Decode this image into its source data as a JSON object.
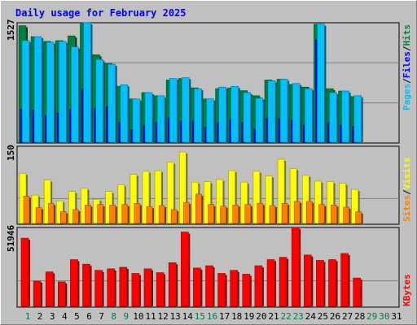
{
  "title": "Daily usage for February 2025",
  "colors": {
    "title": "#0000ff",
    "panel_bg": "#c0c0c0",
    "outer_bg": "#c0c0c0",
    "hits": "#008040",
    "files": "#0000ff",
    "pages": "#00c0ff",
    "visits": "#ffff00",
    "sites": "#ff8000",
    "kbytes": "#ff0000",
    "weekday_label": "#008040",
    "weekend_label": "#000000"
  },
  "legend": {
    "top": [
      {
        "text": "Pages",
        "color": "#00c0ff"
      },
      {
        "text": "/",
        "color": "#000000"
      },
      {
        "text": "Files",
        "color": "#0000ff"
      },
      {
        "text": "/",
        "color": "#000000"
      },
      {
        "text": "Hits",
        "color": "#008040"
      }
    ],
    "mid": [
      {
        "text": "Sites",
        "color": "#ff8000"
      },
      {
        "text": "/",
        "color": "#000000"
      },
      {
        "text": "Visits",
        "color": "#ffff00"
      }
    ],
    "bottom": [
      {
        "text": "KBytes",
        "color": "#ff0000"
      }
    ]
  },
  "chart_data": [
    {
      "type": "bar",
      "panel": "top",
      "ymax_label": "1527",
      "ylim": [
        0,
        1527
      ],
      "x": [
        1,
        2,
        3,
        4,
        5,
        6,
        7,
        8,
        9,
        10,
        11,
        12,
        13,
        14,
        15,
        16,
        17,
        18,
        19,
        20,
        21,
        22,
        23,
        24,
        25,
        26,
        27,
        28
      ],
      "series": [
        {
          "name": "Hits",
          "values": [
            1490,
            1350,
            1290,
            1300,
            1360,
            1527,
            1120,
            1010,
            720,
            560,
            640,
            600,
            800,
            820,
            700,
            560,
            690,
            700,
            665,
            600,
            800,
            810,
            745,
            710,
            1510,
            690,
            660,
            590
          ]
        },
        {
          "name": "Files",
          "values": [
            430,
            420,
            350,
            380,
            430,
            690,
            440,
            460,
            260,
            170,
            220,
            260,
            320,
            280,
            280,
            200,
            250,
            290,
            260,
            180,
            310,
            310,
            290,
            230,
            1310,
            250,
            230,
            210
          ]
        },
        {
          "name": "Pages",
          "values": [
            1300,
            1350,
            1280,
            1290,
            1220,
            1527,
            1060,
            1000,
            740,
            560,
            640,
            600,
            820,
            830,
            690,
            560,
            710,
            720,
            640,
            570,
            790,
            810,
            755,
            690,
            1510,
            640,
            660,
            600
          ]
        }
      ]
    },
    {
      "type": "bar",
      "panel": "middle",
      "ymax_label": "150",
      "ylim": [
        0,
        150
      ],
      "x": [
        1,
        2,
        3,
        4,
        5,
        6,
        7,
        8,
        9,
        10,
        11,
        12,
        13,
        14,
        15,
        16,
        17,
        18,
        19,
        20,
        21,
        22,
        23,
        24,
        25,
        26,
        27,
        28
      ],
      "series": [
        {
          "name": "Visits",
          "values": [
            98,
            56,
            85,
            45,
            63,
            69,
            48,
            63,
            76,
            96,
            102,
            103,
            119,
            139,
            81,
            82,
            86,
            103,
            81,
            102,
            93,
            125,
            107,
            94,
            83,
            82,
            79,
            67
          ]
        },
        {
          "name": "Sites",
          "values": [
            54,
            32,
            40,
            24,
            28,
            37,
            38,
            37,
            38,
            40,
            34,
            36,
            28,
            42,
            58,
            38,
            35,
            37,
            38,
            40,
            36,
            40,
            44,
            44,
            38,
            37,
            33,
            24
          ]
        }
      ]
    },
    {
      "type": "bar",
      "panel": "bottom",
      "ymax_label": "51946",
      "ylim": [
        0,
        51946
      ],
      "x": [
        1,
        2,
        3,
        4,
        5,
        6,
        7,
        8,
        9,
        10,
        11,
        12,
        13,
        14,
        15,
        16,
        17,
        18,
        19,
        20,
        21,
        22,
        23,
        24,
        25,
        26,
        27,
        28
      ],
      "series": [
        {
          "name": "KBytes",
          "values": [
            45000,
            17000,
            23000,
            16500,
            31000,
            28000,
            24000,
            25000,
            26000,
            22000,
            25000,
            22500,
            29000,
            49000,
            25500,
            27000,
            22000,
            24000,
            21500,
            27000,
            31000,
            32500,
            51946,
            34000,
            30500,
            31000,
            35000,
            19000
          ]
        }
      ]
    }
  ],
  "days": [
    {
      "label": "1",
      "weekend": false
    },
    {
      "label": "2",
      "weekend": true
    },
    {
      "label": "3",
      "weekend": true
    },
    {
      "label": "4",
      "weekend": true
    },
    {
      "label": "5",
      "weekend": true
    },
    {
      "label": "6",
      "weekend": true
    },
    {
      "label": "7",
      "weekend": true
    },
    {
      "label": "8",
      "weekend": false
    },
    {
      "label": "9",
      "weekend": false
    },
    {
      "label": "10",
      "weekend": true
    },
    {
      "label": "11",
      "weekend": true
    },
    {
      "label": "12",
      "weekend": true
    },
    {
      "label": "13",
      "weekend": true
    },
    {
      "label": "14",
      "weekend": true
    },
    {
      "label": "15",
      "weekend": false
    },
    {
      "label": "16",
      "weekend": false
    },
    {
      "label": "17",
      "weekend": true
    },
    {
      "label": "18",
      "weekend": true
    },
    {
      "label": "19",
      "weekend": true
    },
    {
      "label": "20",
      "weekend": true
    },
    {
      "label": "21",
      "weekend": true
    },
    {
      "label": "22",
      "weekend": false
    },
    {
      "label": "23",
      "weekend": false
    },
    {
      "label": "24",
      "weekend": true
    },
    {
      "label": "25",
      "weekend": true
    },
    {
      "label": "26",
      "weekend": true
    },
    {
      "label": "27",
      "weekend": true
    },
    {
      "label": "28",
      "weekend": true
    },
    {
      "label": "29",
      "weekend": false
    },
    {
      "label": "30",
      "weekend": false
    },
    {
      "label": "31",
      "weekend": true
    }
  ]
}
